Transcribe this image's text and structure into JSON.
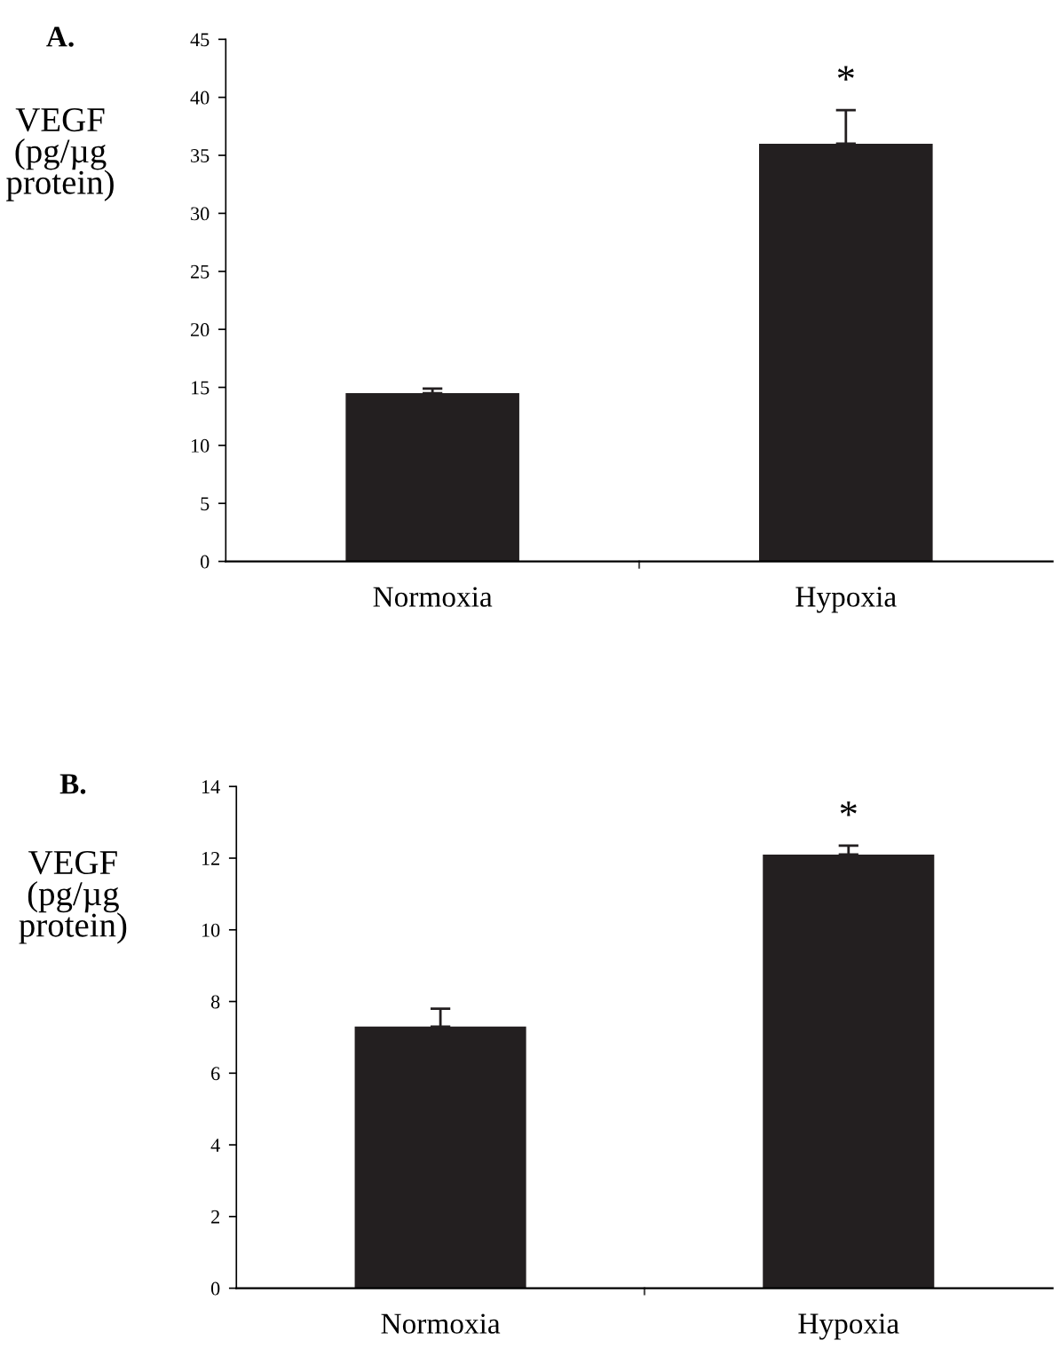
{
  "chart_data": [
    {
      "type": "bar",
      "title": "A.",
      "ylabel": "VEGF\n(pg/µg\nprotein)",
      "categories": [
        "Normoxia",
        "Hypoxia"
      ],
      "values": [
        14.5,
        36
      ],
      "errors": [
        [
          14.5,
          14.9
        ],
        [
          36,
          38.9
        ]
      ],
      "color": "#231f20",
      "ylim": [
        0,
        45
      ],
      "yticks": [
        0,
        5,
        10,
        15,
        20,
        25,
        30,
        35,
        40,
        45
      ],
      "grid": false,
      "annotations": [
        "*"
      ]
    },
    {
      "type": "bar",
      "title": "B.",
      "ylabel": "VEGF\n(pg/µg\nprotein)",
      "categories": [
        "Normoxia",
        "Hypoxia"
      ],
      "values": [
        7.3,
        12.1
      ],
      "errors": [
        [
          7.3,
          7.8
        ],
        [
          12.1,
          12.35
        ]
      ],
      "color": "#231f20",
      "ylim": [
        0,
        14
      ],
      "yticks": [
        0,
        2,
        4,
        6,
        8,
        10,
        12,
        14
      ],
      "grid": false,
      "annotations": [
        "*"
      ]
    }
  ]
}
